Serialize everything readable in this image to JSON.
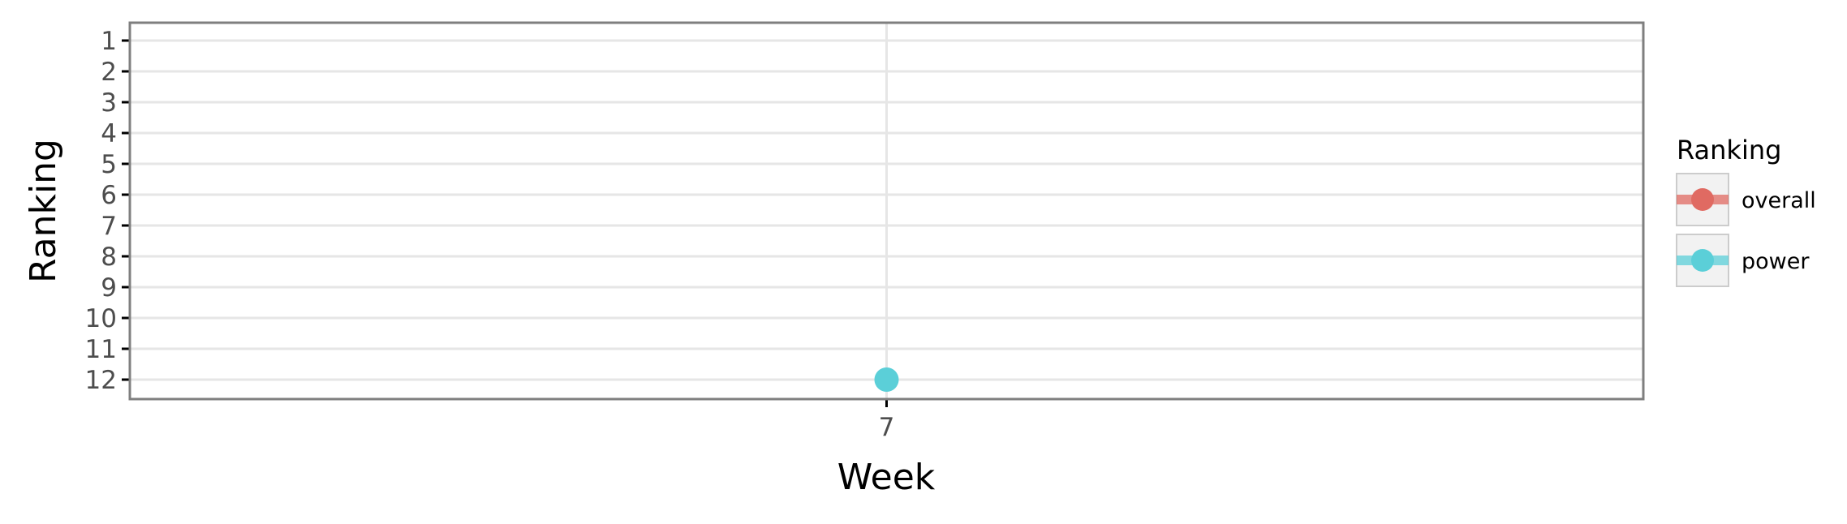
{
  "chart_data": {
    "type": "line",
    "xlabel": "Week",
    "ylabel": "Ranking",
    "x_ticks": [
      "7"
    ],
    "y_ticks": [
      1,
      2,
      3,
      4,
      5,
      6,
      7,
      8,
      9,
      10,
      11,
      12
    ],
    "y_reversed": true,
    "grid": true,
    "legend": {
      "title": "Ranking",
      "placement": "right",
      "entries": [
        {
          "label": "overall",
          "color": "#e06a62"
        },
        {
          "label": "power",
          "color": "#5bcfd8"
        }
      ]
    },
    "series": [
      {
        "name": "overall",
        "color": "#e06a62",
        "points": []
      },
      {
        "name": "power",
        "color": "#5bcfd8",
        "points": [
          {
            "x": "7",
            "y": 12
          }
        ]
      }
    ]
  }
}
